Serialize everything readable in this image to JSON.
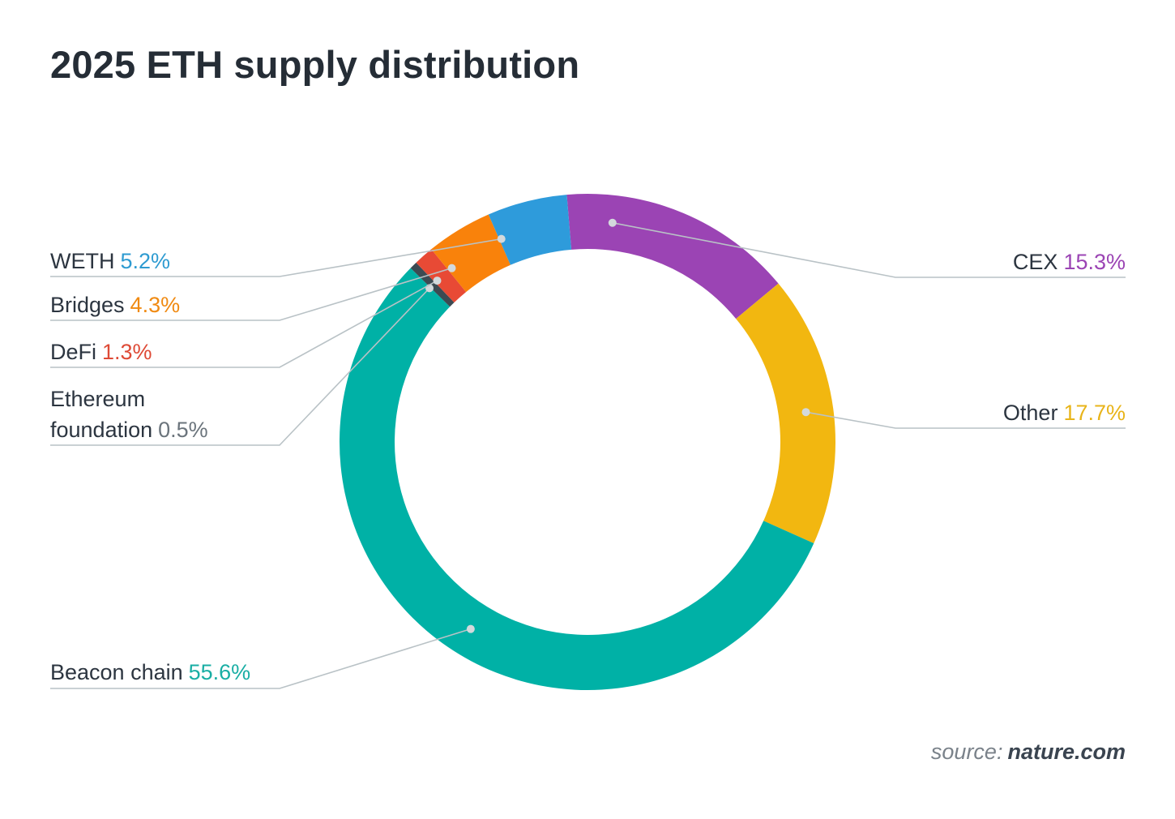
{
  "chart_data": {
    "type": "pie",
    "title": "2025 ETH supply distribution",
    "slices": [
      {
        "label": "CEX",
        "value": 15.3,
        "value_label": "15.3%",
        "color": "#9b44b4"
      },
      {
        "label": "Other",
        "value": 17.7,
        "value_label": "17.7%",
        "color": "#f2b710"
      },
      {
        "label": "Beacon chain",
        "value": 55.6,
        "value_label": "55.6%",
        "color": "#00b1a6"
      },
      {
        "label": "Ethereum foundation",
        "label_lines": [
          "Ethereum",
          "foundation"
        ],
        "value": 0.5,
        "value_label": "0.5%",
        "color": "#3c4a52"
      },
      {
        "label": "DeFi",
        "value": 1.3,
        "value_label": "1.3%",
        "color": "#e84a35"
      },
      {
        "label": "Bridges",
        "value": 4.3,
        "value_label": "4.3%",
        "color": "#f9820b"
      },
      {
        "label": "WETH",
        "value": 5.2,
        "value_label": "5.2%",
        "color": "#2e9bdb"
      }
    ],
    "label_colors": {
      "CEX": "#9b44b4",
      "Other": "#e8b41a",
      "Beacon chain": "#19aea4",
      "Ethereum foundation": "#6b747c",
      "DeFi": "#de4a36",
      "Bridges": "#f08a12",
      "WETH": "#2e9bd1"
    },
    "start_angle_deg": -4.8,
    "direction": "clockwise",
    "hole": true
  },
  "source": {
    "prefix": "source:",
    "site": "nature.com"
  }
}
